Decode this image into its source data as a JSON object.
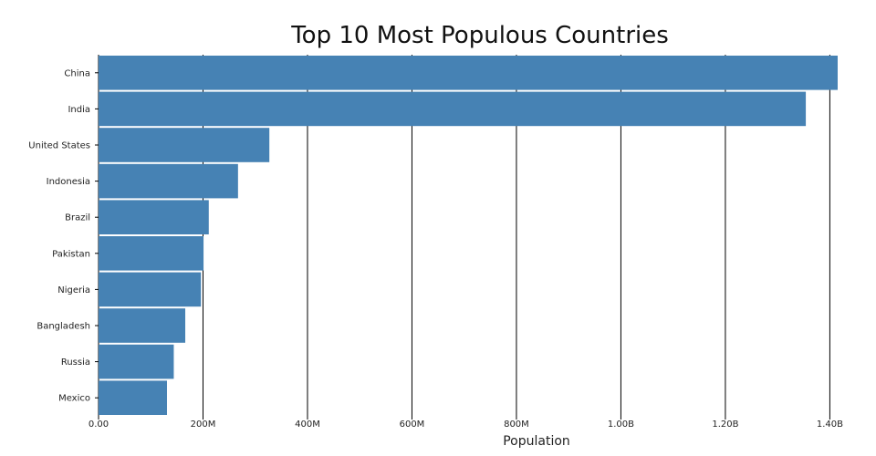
{
  "chart_data": {
    "type": "bar",
    "orientation": "horizontal",
    "title": "Top 10 Most Populous Countries",
    "xlabel": "Population",
    "ylabel": "",
    "categories": [
      "China",
      "India",
      "United States",
      "Indonesia",
      "Brazil",
      "Pakistan",
      "Nigeria",
      "Bangladesh",
      "Russia",
      "Mexico"
    ],
    "values": [
      1415000000,
      1354000000,
      327000000,
      267000000,
      211000000,
      201000000,
      196000000,
      166000000,
      144000000,
      131000000
    ],
    "xlim": [
      0,
      1415000000
    ],
    "x_ticks": [
      0,
      200000000,
      400000000,
      600000000,
      800000000,
      1000000000,
      1200000000,
      1400000000
    ],
    "x_tick_labels": [
      "0.00",
      "200M",
      "400M",
      "600M",
      "800M",
      "1.00B",
      "1.20B",
      "1.40B"
    ],
    "grid": "vertical",
    "legend": "none",
    "bar_color": "#4682b4",
    "grid_color": "#000000"
  }
}
